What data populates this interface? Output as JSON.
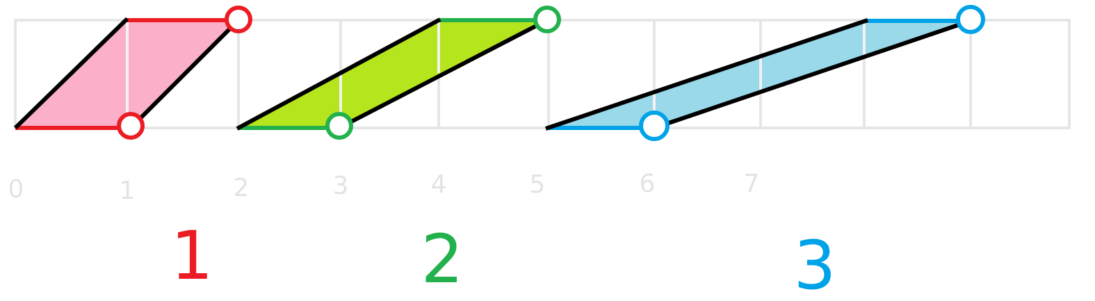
{
  "colors": {
    "grid": "#e6e6e6",
    "tick_text": "#e3e3e3",
    "edge": "#000000",
    "shape_1_fill": "#fbafc8",
    "shape_1_accent": "#ec1c24",
    "shape_2_fill": "#b5e51d",
    "shape_2_accent": "#22b14c",
    "shape_3_fill": "#99d9ea",
    "shape_3_accent": "#00a2e8"
  },
  "axis_labels": [
    "0",
    "1",
    "2",
    "3",
    "4",
    "5",
    "6",
    "7"
  ],
  "shapes": [
    {
      "label": "1",
      "icon": "red-parallelogram"
    },
    {
      "label": "2",
      "icon": "green-parallelogram"
    },
    {
      "label": "3",
      "icon": "blue-parallelogram"
    }
  ]
}
